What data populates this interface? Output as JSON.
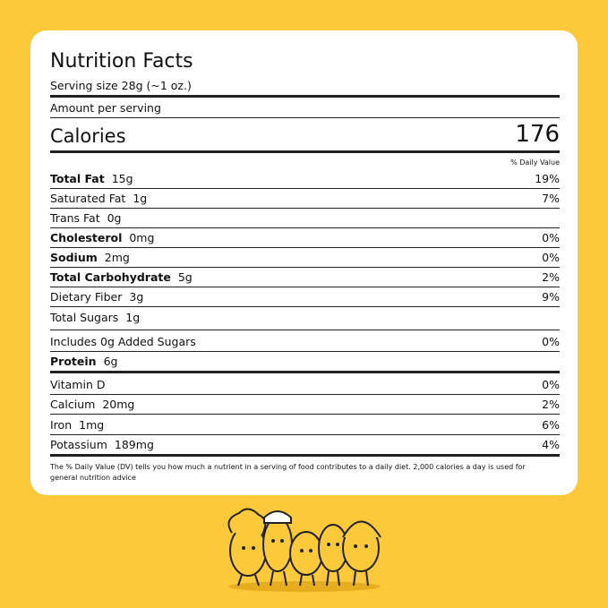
{
  "header": {
    "title": "Nutrition Facts",
    "serving_size": "Serving size 28g (~1 oz.)",
    "amount_per_serving": "Amount per serving"
  },
  "calories": {
    "label": "Calories",
    "value": "176"
  },
  "daily_value_heading": "% Daily Value",
  "rows": [
    {
      "name": "Total Fat",
      "amount": "15g",
      "dv": "19%",
      "bold": true
    },
    {
      "name": "Saturated Fat",
      "amount": "1g",
      "dv": "7%",
      "bold": false
    },
    {
      "name": "Trans Fat",
      "amount": "0g",
      "bold": false
    },
    {
      "name": "Cholesterol",
      "amount": "0mg",
      "dv": "0%",
      "bold": true
    },
    {
      "name": "Sodium",
      "amount": "2mg",
      "dv": "0%",
      "bold": true
    },
    {
      "name": "Total Carbohydrate",
      "amount": "5g",
      "dv": "2%",
      "bold": true
    },
    {
      "name": "Dietary Fiber",
      "amount": "3g",
      "dv": "9%",
      "bold": false
    },
    {
      "name": "Total Sugars",
      "amount": "1g",
      "bold": false
    },
    {
      "name": "Includes 0g Added Sugars",
      "dv": "0%",
      "bold": false
    },
    {
      "name": "Protein",
      "amount": "6g",
      "bold": true
    },
    {
      "name": "Vitamin D",
      "dv": "0%",
      "bold": false
    },
    {
      "name": "Calcium",
      "amount": "20mg",
      "dv": "2%",
      "bold": false
    },
    {
      "name": "Iron",
      "amount": "1mg",
      "dv": "6%",
      "bold": false
    },
    {
      "name": "Potassium",
      "amount": "189mg",
      "dv": "4%",
      "bold": false
    }
  ],
  "footnote": "The % Daily Value (DV) tells you how much a nutrient in a serving of food contributes to a daily diet. 2,000 calories a day is used for general nutrition advice"
}
